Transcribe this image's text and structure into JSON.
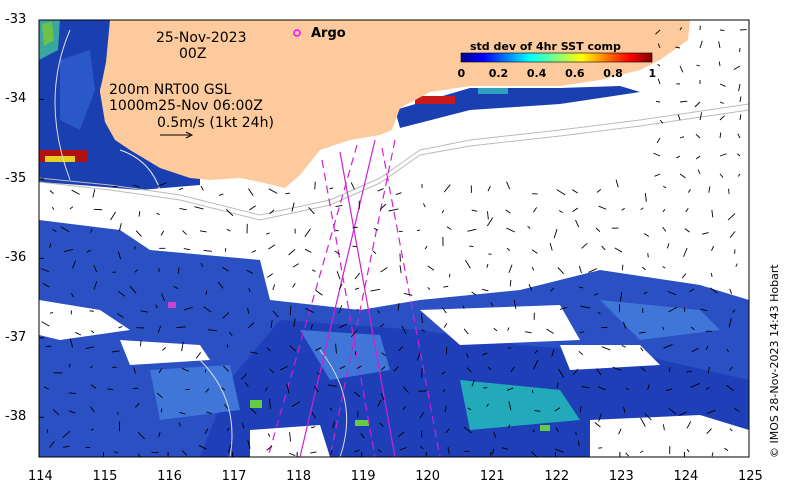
{
  "map": {
    "date_label": "25-Nov-2023",
    "time_label": "00Z",
    "legend_line1": "200m  NRT00 GSL",
    "legend_line2": "1000m25-Nov 06:00Z",
    "vector_scale_label": "0.5m/s (1kt 24h)",
    "argo_label": "Argo",
    "credit": "© IMOS 28-Nov-2023 14:43 Hobart",
    "colorbar": {
      "title": "std dev of 4hr SST comp",
      "ticks": [
        "0",
        "0.2",
        "0.4",
        "0.6",
        "0.8",
        "1"
      ]
    },
    "x_ticks": [
      "114",
      "115",
      "116",
      "117",
      "118",
      "119",
      "120",
      "121",
      "122",
      "123",
      "124",
      "125"
    ],
    "y_ticks": [
      "-33",
      "-34",
      "-35",
      "-36",
      "-37",
      "-38"
    ],
    "lon_range": [
      114,
      125
    ],
    "lat_range": [
      -38.5,
      -33
    ],
    "colors": {
      "land": "#fcca9c",
      "argo": "#ff00ff",
      "track": "#d020d0",
      "contour": "#bbbbbb"
    }
  }
}
